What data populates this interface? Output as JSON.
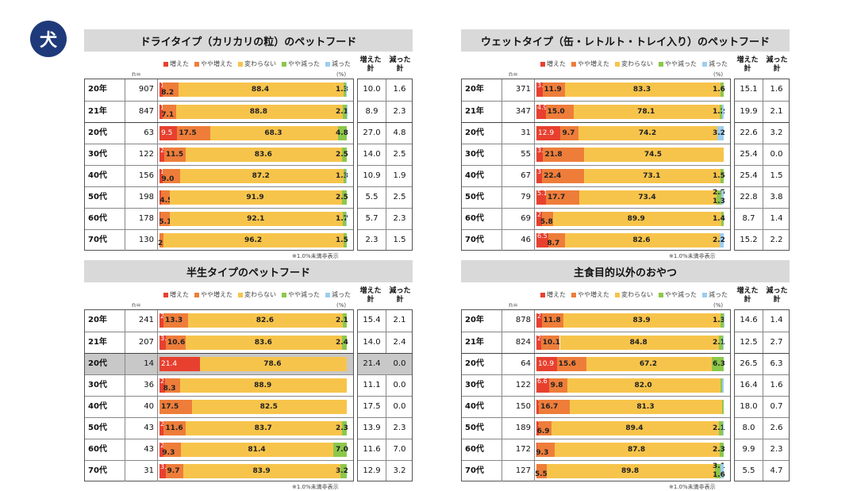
{
  "badge": "犬",
  "legend": {
    "items": [
      "増えた",
      "やや増えた",
      "変わらない",
      "やや減った",
      "減った"
    ],
    "colors": [
      "#e8402f",
      "#ee7d3a",
      "#f7c44b",
      "#8cc84b",
      "#9dcdf0"
    ],
    "n_label": "n=",
    "pct_label": "(%)"
  },
  "headers": {
    "inc": "増えた計",
    "dec": "減った計"
  },
  "note": "※1.0%未満非表示",
  "chart_data": [
    {
      "type": "bar",
      "title": "ドライタイプ（カリカリの粒）のペットフード",
      "rows": [
        {
          "label": "20年",
          "n": "907",
          "values": [
            1.8,
            8.2,
            88.4,
            1.3,
            0.3
          ],
          "labels": [
            "1.8",
            "8.2",
            "88.4",
            "1.3",
            ""
          ],
          "inc": "10.0",
          "dec": "1.6"
        },
        {
          "label": "21年",
          "n": "847",
          "values": [
            1.8,
            7.1,
            88.8,
            2.1,
            0.2
          ],
          "labels": [
            "1.8",
            "7.1",
            "88.8",
            "2.1",
            ""
          ],
          "inc": "8.9",
          "dec": "2.3"
        },
        {
          "label": "20代",
          "n": "63",
          "values": [
            9.5,
            17.5,
            68.3,
            4.8,
            0
          ],
          "labels": [
            "9.5",
            "17.5",
            "68.3",
            "4.8",
            ""
          ],
          "inc": "27.0",
          "dec": "4.8"
        },
        {
          "label": "30代",
          "n": "122",
          "values": [
            2.5,
            11.5,
            83.6,
            2.5,
            0
          ],
          "labels": [
            "2.5",
            "11.5",
            "83.6",
            "2.5",
            ""
          ],
          "inc": "14.0",
          "dec": "2.5"
        },
        {
          "label": "40代",
          "n": "156",
          "values": [
            1.9,
            9.0,
            87.2,
            1.3,
            0.6
          ],
          "labels": [
            "1.9",
            "9.0",
            "87.2",
            "1.3",
            ""
          ],
          "inc": "10.9",
          "dec": "1.9"
        },
        {
          "label": "50代",
          "n": "198",
          "values": [
            1.0,
            4.5,
            91.9,
            2.5,
            0
          ],
          "labels": [
            "1.0",
            "4.5",
            "91.9",
            "2.5",
            ""
          ],
          "inc": "5.5",
          "dec": "2.5"
        },
        {
          "label": "60代",
          "n": "178",
          "values": [
            0.6,
            5.1,
            92.1,
            1.7,
            0.6
          ],
          "labels": [
            "",
            "5.1",
            "92.1",
            "1.7",
            ""
          ],
          "inc": "5.7",
          "dec": "2.3"
        },
        {
          "label": "70代",
          "n": "130",
          "values": [
            0,
            2.3,
            96.2,
            1.5,
            0
          ],
          "labels": [
            "",
            "2.3",
            "96.2",
            "1.5",
            ""
          ],
          "inc": "2.3",
          "dec": "1.5"
        }
      ]
    },
    {
      "type": "bar",
      "title": "ウェットタイプ（缶・レトルト・トレイ入り）のペットフード",
      "rows": [
        {
          "label": "20年",
          "n": "371",
          "values": [
            3.2,
            11.9,
            83.3,
            1.6,
            0
          ],
          "labels": [
            "3.2",
            "11.9",
            "83.3",
            "1.6",
            ""
          ],
          "inc": "15.1",
          "dec": "1.6"
        },
        {
          "label": "21年",
          "n": "347",
          "values": [
            4.9,
            15.0,
            78.1,
            1.2,
            0.9
          ],
          "labels": [
            "4.9",
            "15.0",
            "78.1",
            "1.2",
            ""
          ],
          "inc": "19.9",
          "dec": "2.1"
        },
        {
          "label": "20代",
          "n": "31",
          "values": [
            12.9,
            9.7,
            74.2,
            0,
            3.2
          ],
          "labels": [
            "12.9",
            "9.7",
            "74.2",
            "",
            "3.2"
          ],
          "inc": "22.6",
          "dec": "3.2"
        },
        {
          "label": "30代",
          "n": "55",
          "values": [
            3.6,
            21.8,
            74.5,
            0,
            0
          ],
          "labels": [
            "3.6",
            "21.8",
            "74.5",
            "",
            ""
          ],
          "inc": "25.4",
          "dec": "0.0"
        },
        {
          "label": "40代",
          "n": "67",
          "values": [
            3.0,
            22.4,
            73.1,
            1.5,
            0
          ],
          "labels": [
            "3.0",
            "22.4",
            "73.1",
            "1.5",
            ""
          ],
          "inc": "25.4",
          "dec": "1.5"
        },
        {
          "label": "50代",
          "n": "79",
          "values": [
            5.1,
            17.7,
            73.4,
            2.5,
            1.3
          ],
          "labels": [
            "5.1",
            "17.7",
            "73.4",
            "2.5",
            "1.3"
          ],
          "inc": "22.8",
          "dec": "3.8"
        },
        {
          "label": "60代",
          "n": "69",
          "values": [
            2.9,
            5.8,
            89.9,
            1.4,
            0
          ],
          "labels": [
            "2.9",
            "5.8",
            "89.9",
            "1.4",
            ""
          ],
          "inc": "8.7",
          "dec": "1.4"
        },
        {
          "label": "70代",
          "n": "46",
          "values": [
            6.5,
            8.7,
            82.6,
            0,
            2.2
          ],
          "labels": [
            "6.5",
            "8.7",
            "82.6",
            "",
            "2.2"
          ],
          "inc": "15.2",
          "dec": "2.2"
        }
      ]
    },
    {
      "type": "bar",
      "title": "半生タイプのペットフード",
      "rows": [
        {
          "label": "20年",
          "n": "241",
          "values": [
            2.1,
            13.3,
            82.6,
            2.1,
            0
          ],
          "labels": [
            "2.1",
            "13.3",
            "82.6",
            "2.1",
            ""
          ],
          "inc": "15.4",
          "dec": "2.1"
        },
        {
          "label": "21年",
          "n": "207",
          "values": [
            3.4,
            10.6,
            83.6,
            2.4,
            0
          ],
          "labels": [
            "3.4",
            "10.6",
            "83.6",
            "2.4",
            ""
          ],
          "inc": "14.0",
          "dec": "2.4"
        },
        {
          "label": "20代",
          "n": "14",
          "values": [
            21.4,
            0,
            78.6,
            0,
            0
          ],
          "labels": [
            "21.4",
            "",
            "78.6",
            "",
            ""
          ],
          "inc": "21.4",
          "dec": "0.0",
          "gray": true
        },
        {
          "label": "30代",
          "n": "36",
          "values": [
            2.8,
            8.3,
            88.9,
            0,
            0
          ],
          "labels": [
            "2.8",
            "8.3",
            "88.9",
            "",
            ""
          ],
          "inc": "11.1",
          "dec": "0.0"
        },
        {
          "label": "40代",
          "n": "40",
          "values": [
            0,
            17.5,
            82.5,
            0,
            0
          ],
          "labels": [
            "",
            "17.5",
            "82.5",
            "",
            ""
          ],
          "inc": "17.5",
          "dec": "0.0"
        },
        {
          "label": "50代",
          "n": "43",
          "values": [
            2.3,
            11.6,
            83.7,
            2.3,
            0
          ],
          "labels": [
            "2.3",
            "11.6",
            "83.7",
            "2.3",
            ""
          ],
          "inc": "13.9",
          "dec": "2.3"
        },
        {
          "label": "60代",
          "n": "43",
          "values": [
            2.3,
            9.3,
            81.4,
            7.0,
            0
          ],
          "labels": [
            "2.3",
            "9.3",
            "81.4",
            "7.0",
            ""
          ],
          "inc": "11.6",
          "dec": "7.0"
        },
        {
          "label": "70代",
          "n": "31",
          "values": [
            3.2,
            9.7,
            83.9,
            3.2,
            0
          ],
          "labels": [
            "3.2",
            "9.7",
            "83.9",
            "3.2",
            ""
          ],
          "inc": "12.9",
          "dec": "3.2"
        }
      ]
    },
    {
      "type": "bar",
      "title": "主食目的以外のおやつ",
      "rows": [
        {
          "label": "20年",
          "n": "878",
          "values": [
            2.8,
            11.8,
            83.9,
            1.3,
            0.1
          ],
          "labels": [
            "2.8",
            "11.8",
            "83.9",
            "1.3",
            ""
          ],
          "inc": "14.6",
          "dec": "1.4"
        },
        {
          "label": "21年",
          "n": "824",
          "values": [
            2.4,
            10.1,
            84.8,
            2.1,
            0.6
          ],
          "labels": [
            "2.4",
            "10.1",
            "84.8",
            "2.1",
            ""
          ],
          "inc": "12.5",
          "dec": "2.7"
        },
        {
          "label": "20代",
          "n": "64",
          "values": [
            10.9,
            15.6,
            67.2,
            6.3,
            0
          ],
          "labels": [
            "10.9",
            "15.6",
            "67.2",
            "6.3",
            ""
          ],
          "inc": "26.5",
          "dec": "6.3"
        },
        {
          "label": "30代",
          "n": "122",
          "values": [
            6.6,
            9.8,
            82.0,
            0.8,
            0.8
          ],
          "labels": [
            "6.6",
            "9.8",
            "82.0",
            "",
            ""
          ],
          "inc": "16.4",
          "dec": "1.6"
        },
        {
          "label": "40代",
          "n": "150",
          "values": [
            1.3,
            16.7,
            81.3,
            0.7,
            0
          ],
          "labels": [
            "1.3",
            "16.7",
            "81.3",
            "",
            ""
          ],
          "inc": "18.0",
          "dec": "0.7"
        },
        {
          "label": "50代",
          "n": "189",
          "values": [
            1.1,
            6.9,
            89.4,
            2.1,
            0.5
          ],
          "labels": [
            "1.1",
            "6.9",
            "89.4",
            "2.1",
            ""
          ],
          "inc": "8.0",
          "dec": "2.6"
        },
        {
          "label": "60代",
          "n": "172",
          "values": [
            0.6,
            9.3,
            87.8,
            2.3,
            0
          ],
          "labels": [
            "",
            "9.3",
            "87.8",
            "2.3",
            ""
          ],
          "inc": "9.9",
          "dec": "2.3"
        },
        {
          "label": "70代",
          "n": "127",
          "values": [
            0,
            5.5,
            89.8,
            3.1,
            1.6
          ],
          "labels": [
            "",
            "5.5",
            "89.8",
            "3.1",
            "1.6"
          ],
          "inc": "5.5",
          "dec": "4.7"
        }
      ]
    }
  ]
}
